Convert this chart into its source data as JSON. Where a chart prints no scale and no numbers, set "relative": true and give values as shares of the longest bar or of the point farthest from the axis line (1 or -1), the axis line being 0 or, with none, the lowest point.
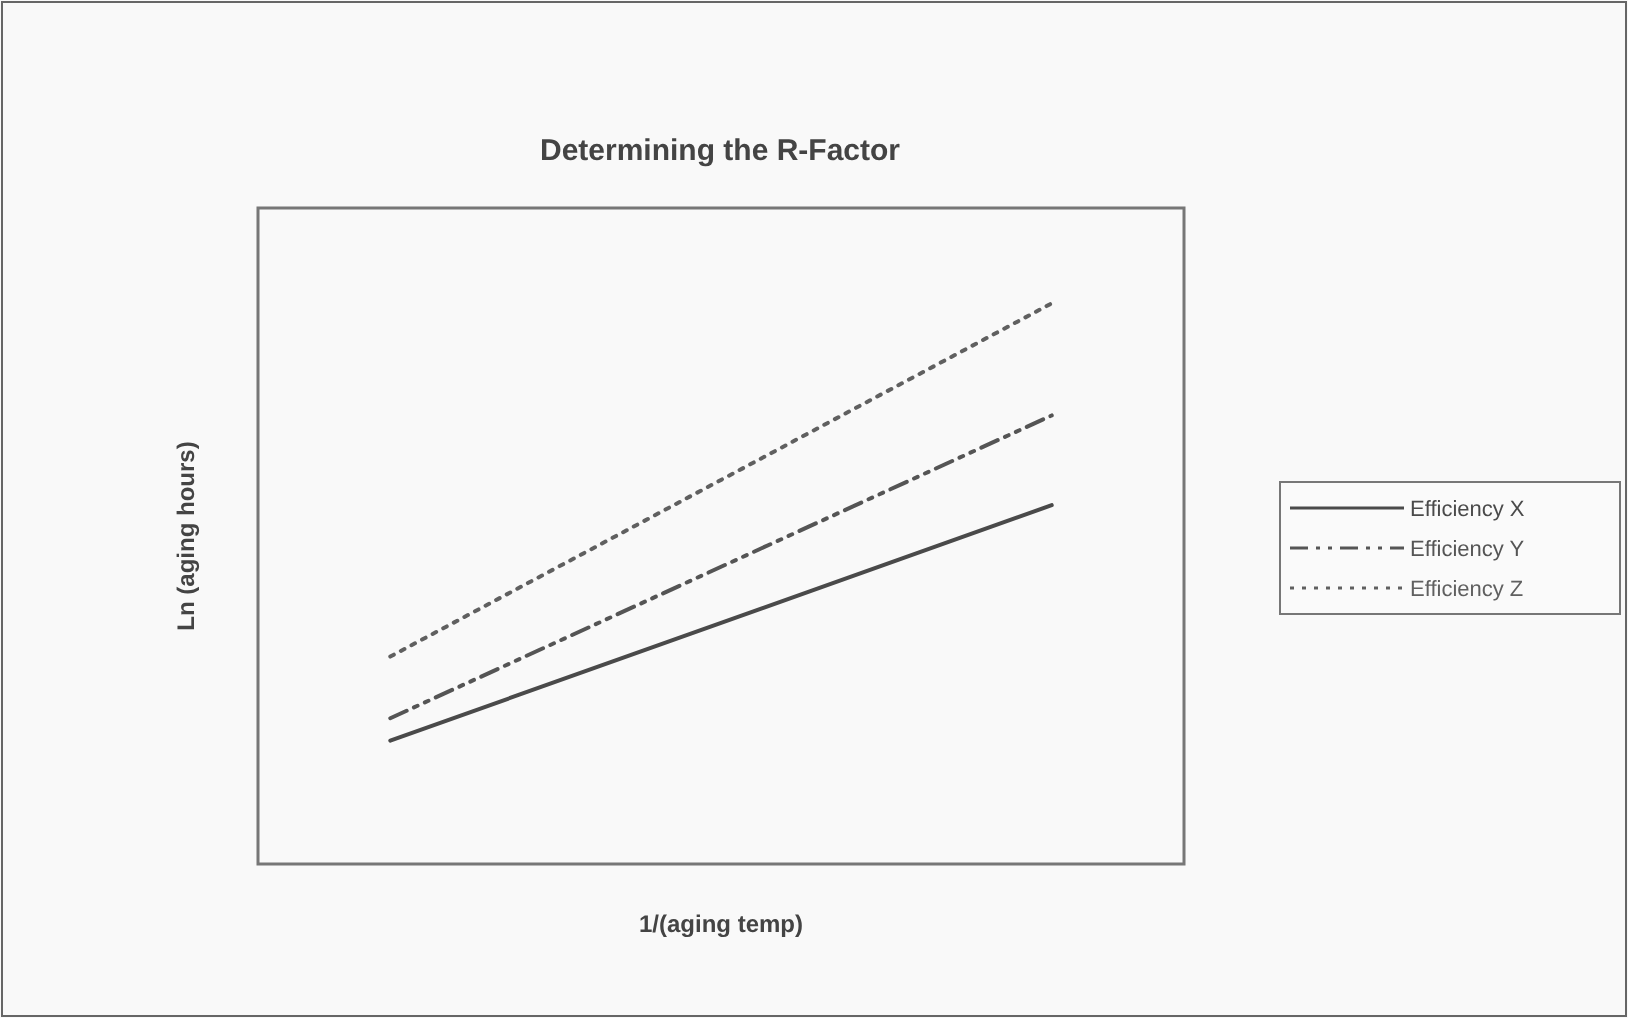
{
  "chart_data": {
    "type": "line",
    "title": "Determining the R-Factor",
    "xlabel": "1/(aging temp)",
    "ylabel": "Ln (aging hours)",
    "relative": true,
    "categories": [
      null,
      null
    ],
    "legend": "right",
    "marker": "none",
    "series": [
      {
        "name": "Efficiency X",
        "color": "#4a4a4a",
        "line_style": "solid",
        "values": [
          0.22,
          0.64
        ]
      },
      {
        "name": "Efficiency Y",
        "color": "#555555",
        "line_style": "dashed",
        "values": [
          0.26,
          0.8
        ]
      },
      {
        "name": "Efficiency Z",
        "color": "#606060",
        "line_style": "dotted",
        "values": [
          0.37,
          1
        ]
      }
    ]
  }
}
